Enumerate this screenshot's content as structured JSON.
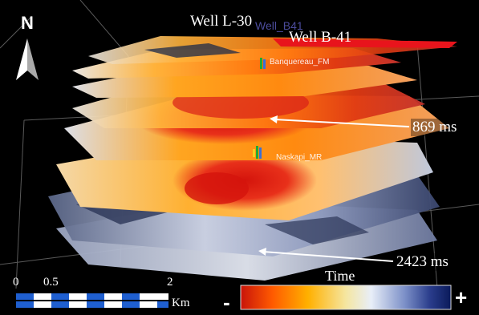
{
  "wells": {
    "l30": "Well L-30",
    "b41": "Well B-41",
    "ghost": "Well_B41"
  },
  "horizons": {
    "upper": "Banquereau_FM",
    "lower": "Naskapi_MR"
  },
  "time_labels": {
    "upper": "869 ms",
    "lower": "2423 ms"
  },
  "north": {
    "label": "N"
  },
  "scale_bar": {
    "ticks": [
      "0",
      "0.5",
      "2"
    ],
    "unit": "Km"
  },
  "colorbar": {
    "title": "Time",
    "minus": "-",
    "plus": "+",
    "colors": [
      "#c8140a",
      "#ff5a00",
      "#ffb000",
      "#f5e6a0",
      "#e8eef8",
      "#7c90c8",
      "#2a3d8c",
      "#0a1a5a"
    ]
  }
}
